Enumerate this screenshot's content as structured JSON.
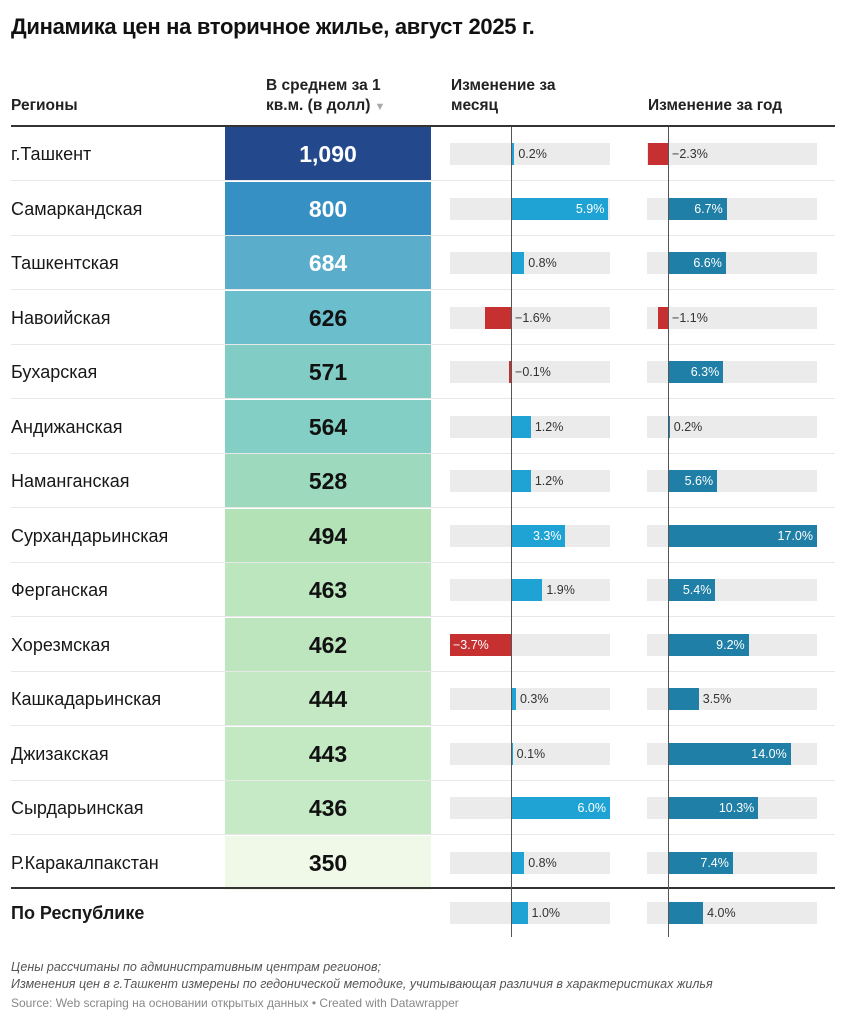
{
  "title": "Динамика цен на вторичное жилье, август 2025 г.",
  "headers": {
    "region": "Регионы",
    "price_line1": "В среднем за 1",
    "price_line2": "кв.м. (в долл)",
    "sort_icon": "▼",
    "month_line1": "Изменение за",
    "month_line2": "месяц",
    "year": "Изменение за год"
  },
  "colors": {
    "positive_month": "#1ea3d4",
    "positive_year": "#1f7fa6",
    "negative": "#c73030",
    "bar_bg": "#ebebeb"
  },
  "chart_data": {
    "type": "table",
    "title": "Динамика цен на вторичное жилье, август 2025 г.",
    "columns": [
      "Регионы",
      "В среднем за 1 кв.м. (в долл)",
      "Изменение за месяц",
      "Изменение за год"
    ],
    "month_range": [
      -3.7,
      6.0
    ],
    "year_range": [
      -2.4,
      17.0
    ],
    "rows": [
      {
        "region": "г.Ташкент",
        "price": "1,090",
        "price_value": 1090,
        "month": 0.2,
        "month_label": "0.2%",
        "year": -2.3,
        "year_label": "−2.3%"
      },
      {
        "region": "Самаркандская",
        "price": "800",
        "price_value": 800,
        "month": 5.9,
        "month_label": "5.9%",
        "year": 6.7,
        "year_label": "6.7%"
      },
      {
        "region": "Ташкентская",
        "price": "684",
        "price_value": 684,
        "month": 0.8,
        "month_label": "0.8%",
        "year": 6.6,
        "year_label": "6.6%"
      },
      {
        "region": "Навоийская",
        "price": "626",
        "price_value": 626,
        "month": -1.6,
        "month_label": "−1.6%",
        "year": -1.1,
        "year_label": "−1.1%"
      },
      {
        "region": "Бухарская",
        "price": "571",
        "price_value": 571,
        "month": -0.1,
        "month_label": "−0.1%",
        "year": 6.3,
        "year_label": "6.3%"
      },
      {
        "region": "Андижанская",
        "price": "564",
        "price_value": 564,
        "month": 1.2,
        "month_label": "1.2%",
        "year": 0.2,
        "year_label": "0.2%"
      },
      {
        "region": "Наманганская",
        "price": "528",
        "price_value": 528,
        "month": 1.2,
        "month_label": "1.2%",
        "year": 5.6,
        "year_label": "5.6%"
      },
      {
        "region": "Сурхандарьинская",
        "price": "494",
        "price_value": 494,
        "month": 3.3,
        "month_label": "3.3%",
        "year": 17.0,
        "year_label": "17.0%"
      },
      {
        "region": "Ферганская",
        "price": "463",
        "price_value": 463,
        "month": 1.9,
        "month_label": "1.9%",
        "year": 5.4,
        "year_label": "5.4%"
      },
      {
        "region": "Хорезмская",
        "price": "462",
        "price_value": 462,
        "month": -3.7,
        "month_label": "−3.7%",
        "year": 9.2,
        "year_label": "9.2%"
      },
      {
        "region": "Кашкадарьинская",
        "price": "444",
        "price_value": 444,
        "month": 0.3,
        "month_label": "0.3%",
        "year": 3.5,
        "year_label": "3.5%"
      },
      {
        "region": "Джизакская",
        "price": "443",
        "price_value": 443,
        "month": 0.1,
        "month_label": "0.1%",
        "year": 14.0,
        "year_label": "14.0%"
      },
      {
        "region": "Сырдарьинская",
        "price": "436",
        "price_value": 436,
        "month": 6.0,
        "month_label": "6.0%",
        "year": 10.3,
        "year_label": "10.3%"
      },
      {
        "region": "Р.Каракалпакстан",
        "price": "350",
        "price_value": 350,
        "month": 0.8,
        "month_label": "0.8%",
        "year": 7.4,
        "year_label": "7.4%"
      }
    ],
    "total": {
      "region": "По Республике",
      "month": 1.0,
      "month_label": "1.0%",
      "year": 4.0,
      "year_label": "4.0%"
    }
  },
  "notes": {
    "line1": "Цены рассчитаны по административным центрам регионов;",
    "line2": "Изменения цен в г.Ташкент измерены по гедонической методике, учитывающая различия в характеристиках жилья",
    "source": "Source: Web scraping на основании открытых данных • Created with Datawrapper"
  }
}
